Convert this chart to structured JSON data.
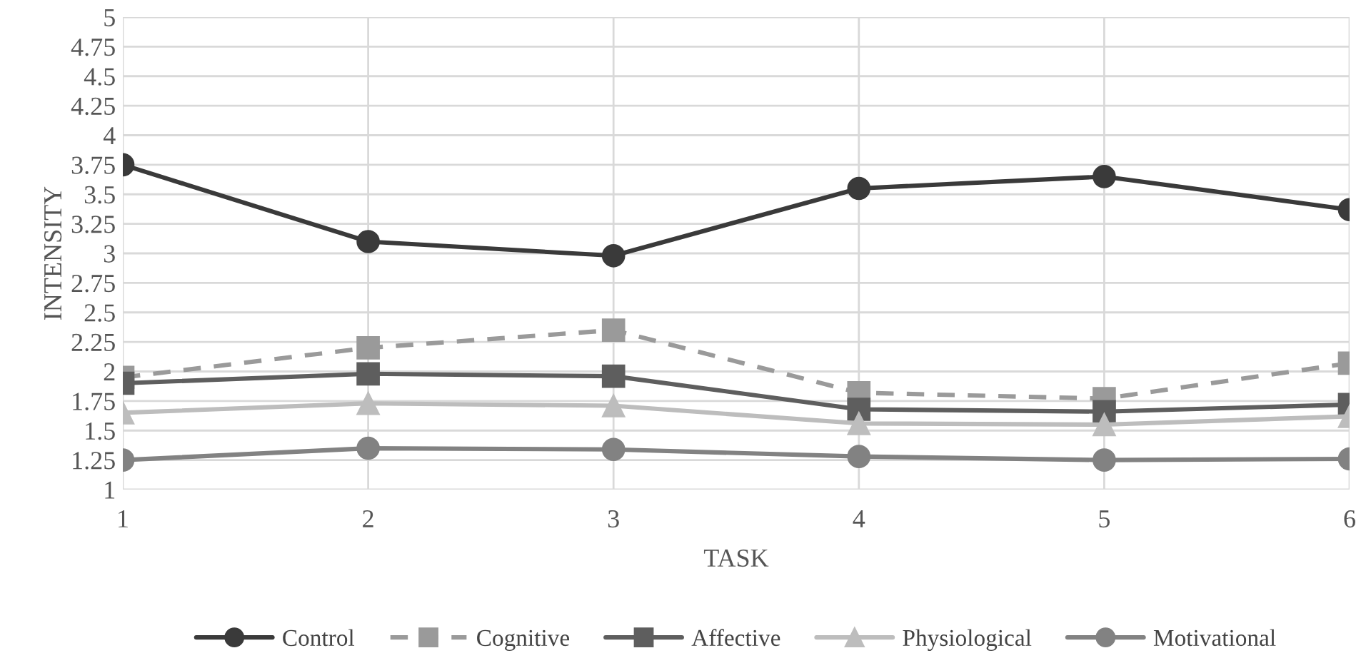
{
  "chart_data": {
    "type": "line",
    "xlabel": "TASK",
    "ylabel": "INTENSITY",
    "categories": [
      "1",
      "2",
      "3",
      "4",
      "5",
      "6"
    ],
    "series": [
      {
        "name": "Control",
        "color": "#3a3a3a",
        "marker": "circle",
        "line_style": "solid",
        "values": [
          3.75,
          3.1,
          2.98,
          3.55,
          3.65,
          3.37
        ]
      },
      {
        "name": "Cognitive",
        "color": "#9a9a9a",
        "marker": "square",
        "line_style": "dashed",
        "values": [
          1.95,
          2.2,
          2.35,
          1.82,
          1.77,
          2.07
        ]
      },
      {
        "name": "Affective",
        "color": "#5e5e5e",
        "marker": "square",
        "line_style": "solid",
        "values": [
          1.9,
          1.98,
          1.96,
          1.68,
          1.66,
          1.72
        ]
      },
      {
        "name": "Physiological",
        "color": "#bdbdbd",
        "marker": "triangle",
        "line_style": "solid",
        "values": [
          1.65,
          1.73,
          1.71,
          1.56,
          1.55,
          1.62
        ]
      },
      {
        "name": "Motivational",
        "color": "#828282",
        "marker": "circle",
        "line_style": "solid",
        "values": [
          1.25,
          1.35,
          1.34,
          1.28,
          1.25,
          1.26
        ]
      }
    ],
    "ylim": [
      1,
      5
    ],
    "yticks": [
      1,
      1.25,
      1.5,
      1.75,
      2,
      2.25,
      2.5,
      2.75,
      3,
      3.25,
      3.5,
      3.75,
      4,
      4.25,
      4.5,
      4.75,
      5
    ],
    "grid": true,
    "legend": "bottom"
  }
}
